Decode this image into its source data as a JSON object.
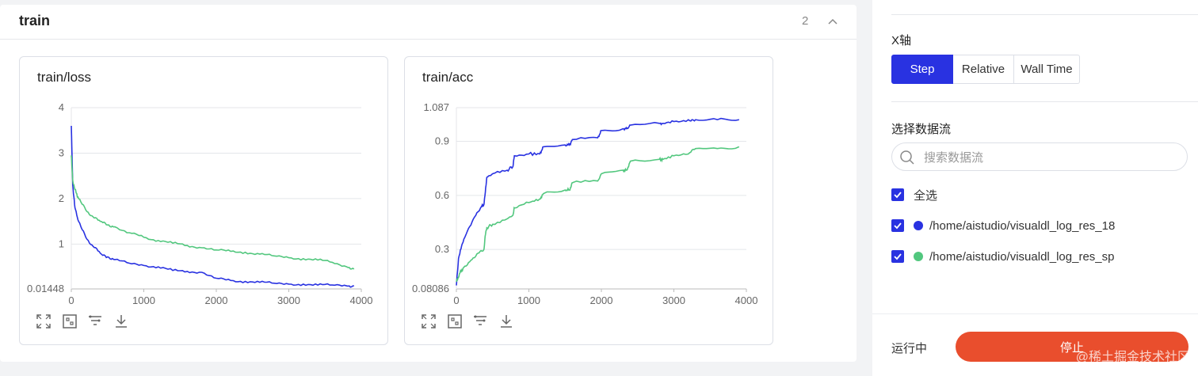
{
  "section": {
    "title": "train",
    "count": "2"
  },
  "cards": [
    {
      "title": "train/loss"
    },
    {
      "title": "train/acc"
    }
  ],
  "sidebar": {
    "x_axis_label": "X轴",
    "x_axis_options": [
      "Step",
      "Relative",
      "Wall Time"
    ],
    "x_axis_selected": "Step",
    "stream_label": "选择数据流",
    "search_placeholder": "搜索数据流",
    "select_all": "全选",
    "streams": [
      {
        "label": "/home/aistudio/visualdl_log_res_18",
        "color": "#2932e1",
        "checked": true
      },
      {
        "label": "/home/aistudio/visualdl_log_res_sp",
        "color": "#52c77e",
        "checked": true
      }
    ],
    "status": "运行中",
    "stop_label": "停止",
    "watermark": "@稀土掘金技术社区"
  },
  "colors": {
    "accent": "#2932e1",
    "series_2": "#52c77e",
    "stop": "#e94e2d"
  },
  "chart_data": [
    {
      "type": "line",
      "title": "train/loss",
      "xlim": [
        0,
        4000
      ],
      "ylim": [
        0.01448,
        4
      ],
      "x_ticks": [
        "0",
        "1000",
        "2000",
        "3000",
        "4000"
      ],
      "y_ticks": [
        "0.01448",
        "1",
        "2",
        "3",
        "4"
      ],
      "y_tick_values": [
        0.01448,
        1,
        2,
        3,
        4
      ],
      "grid": true,
      "series": [
        {
          "name": "/home/aistudio/visualdl_log_res_18",
          "color": "#2932e1",
          "x": [
            0,
            20,
            50,
            100,
            200,
            300,
            400,
            500,
            600,
            800,
            1000,
            1200,
            1400,
            1600,
            1800,
            2000,
            2200,
            2400,
            2600,
            2800,
            3000,
            3200,
            3400,
            3600,
            3800,
            3900
          ],
          "y": [
            3.6,
            2.3,
            1.8,
            1.5,
            1.15,
            0.95,
            0.8,
            0.72,
            0.66,
            0.58,
            0.53,
            0.5,
            0.42,
            0.4,
            0.38,
            0.25,
            0.2,
            0.18,
            0.16,
            0.14,
            0.12,
            0.12,
            0.1,
            0.1,
            0.08,
            0.08
          ]
        },
        {
          "name": "/home/aistudio/visualdl_log_res_sp",
          "color": "#52c77e",
          "x": [
            0,
            20,
            50,
            100,
            200,
            300,
            400,
            500,
            600,
            800,
            1000,
            1200,
            1400,
            1600,
            1800,
            2000,
            2200,
            2400,
            2600,
            2800,
            3000,
            3200,
            3400,
            3600,
            3800,
            3900
          ],
          "y": [
            2.95,
            2.4,
            2.2,
            2.0,
            1.75,
            1.6,
            1.5,
            1.42,
            1.38,
            1.25,
            1.15,
            1.08,
            1.02,
            0.97,
            0.92,
            0.87,
            0.84,
            0.82,
            0.78,
            0.74,
            0.7,
            0.68,
            0.65,
            0.6,
            0.5,
            0.45
          ]
        }
      ]
    },
    {
      "type": "line",
      "title": "train/acc",
      "xlim": [
        0,
        4000
      ],
      "ylim": [
        0.08086,
        1.087
      ],
      "x_ticks": [
        "0",
        "1000",
        "2000",
        "3000",
        "4000"
      ],
      "y_ticks": [
        "0.08086",
        "0.3",
        "0.6",
        "0.9",
        "1.087"
      ],
      "y_tick_values": [
        0.08086,
        0.3,
        0.6,
        0.9,
        1.087
      ],
      "grid": true,
      "series": [
        {
          "name": "/home/aistudio/visualdl_log_res_18",
          "color": "#2932e1",
          "x": [
            0,
            30,
            80,
            150,
            250,
            350,
            380,
            400,
            420,
            500,
            700,
            780,
            800,
            1000,
            1150,
            1200,
            1500,
            1560,
            1600,
            1950,
            2000,
            2300,
            2350,
            2400,
            2800,
            2850,
            3000,
            3200,
            3300,
            3600,
            3900
          ],
          "y": [
            0.1,
            0.25,
            0.33,
            0.4,
            0.48,
            0.54,
            0.55,
            0.62,
            0.7,
            0.72,
            0.74,
            0.76,
            0.82,
            0.83,
            0.83,
            0.87,
            0.88,
            0.88,
            0.91,
            0.92,
            0.96,
            0.97,
            0.97,
            0.99,
            1.0,
            1.0,
            1.01,
            1.02,
            1.02,
            1.02,
            1.02
          ]
        },
        {
          "name": "/home/aistudio/visualdl_log_res_sp",
          "color": "#52c77e",
          "x": [
            0,
            50,
            100,
            200,
            300,
            380,
            400,
            420,
            500,
            700,
            780,
            800,
            1000,
            1150,
            1200,
            1500,
            1560,
            1600,
            1950,
            2000,
            2300,
            2350,
            2400,
            2800,
            2850,
            3000,
            3200,
            3300,
            3600,
            3900
          ],
          "y": [
            0.12,
            0.17,
            0.2,
            0.24,
            0.28,
            0.3,
            0.38,
            0.42,
            0.44,
            0.47,
            0.49,
            0.53,
            0.56,
            0.58,
            0.61,
            0.63,
            0.63,
            0.67,
            0.68,
            0.72,
            0.74,
            0.74,
            0.79,
            0.8,
            0.8,
            0.82,
            0.83,
            0.86,
            0.86,
            0.87
          ]
        }
      ]
    }
  ]
}
